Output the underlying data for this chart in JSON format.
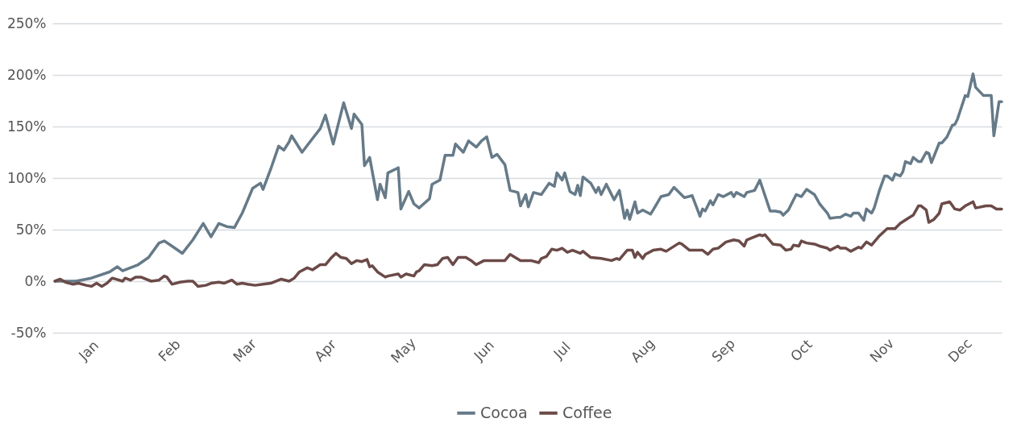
{
  "chart_data": {
    "type": "line",
    "legend": "bottom",
    "grid": "y",
    "line_style": "solid",
    "xlim": [
      "--01-01",
      "--12-31"
    ],
    "xticks": [
      {
        "value": "--01-15",
        "label": "Jan"
      },
      {
        "value": "--02-15",
        "label": "Feb"
      },
      {
        "value": "--03-15",
        "label": "Mar"
      },
      {
        "value": "--04-15",
        "label": "Apr"
      },
      {
        "value": "--05-15",
        "label": "May"
      },
      {
        "value": "--06-15",
        "label": "Jun"
      },
      {
        "value": "--07-15",
        "label": "Jul"
      },
      {
        "value": "--08-15",
        "label": "Aug"
      },
      {
        "value": "--09-15",
        "label": "Sep"
      },
      {
        "value": "--10-15",
        "label": "Oct"
      },
      {
        "value": "--11-15",
        "label": "Nov"
      },
      {
        "value": "--12-15",
        "label": "Dec"
      }
    ],
    "ylim": [
      -50,
      250
    ],
    "yticks": [
      {
        "value": -50,
        "label": "-50%"
      },
      {
        "value": 0,
        "label": "0%"
      },
      {
        "value": 50,
        "label": "50%"
      },
      {
        "value": 100,
        "label": "100%"
      },
      {
        "value": 150,
        "label": "150%"
      },
      {
        "value": 200,
        "label": "200%"
      },
      {
        "value": 250,
        "label": "250%"
      }
    ],
    "series": [
      {
        "name": "Cocoa",
        "color": "#667a88",
        "x": [
          "--01-02",
          "--01-10",
          "--01-16",
          "--01-23",
          "--01-26",
          "--01-28",
          "--02-03",
          "--02-07",
          "--02-11",
          "--02-13",
          "--02-16",
          "--02-20",
          "--02-24",
          "--02-28",
          "--03-02",
          "--03-05",
          "--03-08",
          "--03-11",
          "--03-14",
          "--03-18",
          "--03-21",
          "--03-22",
          "--03-25",
          "--03-28",
          "--03-30",
          "--04-01",
          "--04-02",
          "--04-06",
          "--04-09",
          "--04-13",
          "--04-15",
          "--04-18",
          "--04-21",
          "--04-22",
          "--04-25",
          "--04-26",
          "--04-29",
          "--04-30",
          "--05-02",
          "--05-05",
          "--05-06",
          "--05-08",
          "--05-09",
          "--05-13",
          "--05-14",
          "--05-17",
          "--05-19",
          "--05-21",
          "--05-25",
          "--05-26",
          "--05-29",
          "--05-31",
          "--06-03",
          "--06-04",
          "--06-07",
          "--06-09",
          "--06-12",
          "--06-14",
          "--06-16",
          "--06-18",
          "--06-20",
          "--06-23",
          "--06-25",
          "--06-28",
          "--06-29",
          "--07-01",
          "--07-02",
          "--07-04",
          "--07-07",
          "--07-10",
          "--07-12",
          "--07-13",
          "--07-15",
          "--07-16",
          "--07-18",
          "--07-20",
          "--07-21",
          "--07-22",
          "--07-23",
          "--07-26",
          "--07-28",
          "--07-29",
          "--07-30",
          "--08-01",
          "--08-04",
          "--08-06",
          "--08-08",
          "--08-09",
          "--08-10",
          "--08-12",
          "--08-13",
          "--08-15",
          "--08-18",
          "--08-19",
          "--08-22",
          "--08-25",
          "--08-27",
          "--08-31",
          "--09-03",
          "--09-06",
          "--09-07",
          "--09-08",
          "--09-10",
          "--09-11",
          "--09-13",
          "--09-15",
          "--09-18",
          "--09-19",
          "--09-20",
          "--09-23",
          "--09-24",
          "--09-27",
          "--09-29",
          "--10-03",
          "--10-05",
          "--10-07",
          "--10-08",
          "--10-10",
          "--10-13",
          "--10-15",
          "--10-17",
          "--10-20",
          "--10-22",
          "--10-25",
          "--10-26",
          "--10-29",
          "--10-30",
          "--11-01",
          "--11-03",
          "--11-04",
          "--11-06",
          "--11-08",
          "--11-09",
          "--11-11",
          "--11-12",
          "--11-14",
          "--11-16",
          "--11-17",
          "--11-19",
          "--11-20",
          "--11-22",
          "--11-23",
          "--11-24",
          "--11-26",
          "--11-27",
          "--11-29",
          "--11-30",
          "--12-02",
          "--12-03",
          "--12-04",
          "--12-07",
          "--12-08",
          "--12-10",
          "--12-12",
          "--12-13",
          "--12-14",
          "--12-17",
          "--12-18",
          "--12-20",
          "--12-21",
          "--12-24",
          "--12-27",
          "--12-28",
          "--12-30",
          "--12-31"
        ],
        "values": [
          0,
          0,
          3,
          9,
          14,
          10,
          16,
          23,
          37,
          39,
          34,
          27,
          40,
          56,
          43,
          56,
          53,
          52,
          66,
          90,
          95,
          89,
          109,
          131,
          127,
          135,
          141,
          125,
          135,
          148,
          161,
          133,
          163,
          173,
          148,
          162,
          152,
          112,
          120,
          79,
          94,
          81,
          105,
          110,
          70,
          87,
          75,
          71,
          80,
          94,
          98,
          122,
          122,
          133,
          125,
          136,
          130,
          136,
          140,
          120,
          123,
          113,
          88,
          86,
          73,
          84,
          72,
          86,
          84,
          95,
          92,
          105,
          98,
          105,
          87,
          84,
          93,
          83,
          101,
          95,
          86,
          91,
          84,
          94,
          79,
          88,
          61,
          69,
          60,
          77,
          66,
          69,
          65,
          69,
          82,
          84,
          91,
          81,
          83,
          63,
          70,
          68,
          78,
          74,
          84,
          82,
          86,
          82,
          86,
          82,
          86,
          88,
          98,
          68,
          68,
          67,
          64,
          69,
          84,
          82,
          89,
          84,
          75,
          66,
          61,
          62,
          62,
          65,
          63,
          66,
          66,
          59,
          70,
          66,
          71,
          88,
          102,
          102,
          98,
          104,
          102,
          106,
          116,
          114,
          120,
          116,
          116,
          125,
          124,
          115,
          134,
          134,
          140,
          151,
          152,
          157,
          180,
          179,
          201,
          188,
          180,
          180,
          141,
          174,
          174
        ]
      },
      {
        "name": "Coffee",
        "color": "#6b4a48",
        "x": [
          "--01-02",
          "--01-04",
          "--01-06",
          "--01-09",
          "--01-11",
          "--01-14",
          "--01-16",
          "--01-18",
          "--01-20",
          "--01-22",
          "--01-24",
          "--01-28",
          "--01-29",
          "--01-31",
          "--02-02",
          "--02-04",
          "--02-08",
          "--02-11",
          "--02-13",
          "--02-14",
          "--02-16",
          "--02-19",
          "--02-22",
          "--02-24",
          "--02-26",
          "--02-29",
          "--03-02",
          "--03-05",
          "--03-07",
          "--03-10",
          "--03-12",
          "--03-14",
          "--03-16",
          "--03-19",
          "--03-22",
          "--03-25",
          "--03-29",
          "--04-01",
          "--04-03",
          "--04-05",
          "--04-08",
          "--04-10",
          "--04-13",
          "--04-15",
          "--04-17",
          "--04-19",
          "--04-21",
          "--04-23",
          "--04-25",
          "--04-27",
          "--04-29",
          "--05-01",
          "--05-02",
          "--05-03",
          "--05-05",
          "--05-08",
          "--05-09",
          "--05-13",
          "--05-14",
          "--05-16",
          "--05-19",
          "--05-20",
          "--05-21",
          "--05-23",
          "--05-26",
          "--05-28",
          "--05-30",
          "--06-01",
          "--06-03",
          "--06-05",
          "--06-08",
          "--06-10",
          "--06-12",
          "--06-15",
          "--06-19",
          "--06-21",
          "--06-23",
          "--06-25",
          "--06-29",
          "--07-01",
          "--07-03",
          "--07-06",
          "--07-07",
          "--07-09",
          "--07-11",
          "--07-13",
          "--07-15",
          "--07-17",
          "--07-19",
          "--07-22",
          "--07-23",
          "--07-26",
          "--07-30",
          "--08-03",
          "--08-05",
          "--08-06",
          "--08-09",
          "--08-11",
          "--08-12",
          "--08-13",
          "--08-15",
          "--08-16",
          "--08-19",
          "--08-22",
          "--08-24",
          "--08-29",
          "--08-30",
          "--09-02",
          "--09-07",
          "--09-09",
          "--09-11",
          "--09-13",
          "--09-16",
          "--09-19",
          "--09-21",
          "--09-23",
          "--09-24",
          "--09-27",
          "--09-29",
          "--09-30",
          "--10-01",
          "--10-04",
          "--10-07",
          "--10-09",
          "--10-11",
          "--10-12",
          "--10-14",
          "--10-15",
          "--10-17",
          "--10-20",
          "--10-22",
          "--10-25",
          "--10-26",
          "--10-29",
          "--10-30",
          "--11-01",
          "--11-03",
          "--11-06",
          "--11-07",
          "--11-09",
          "--11-11",
          "--11-14",
          "--11-17",
          "--11-20",
          "--11-22",
          "--11-25",
          "--11-27",
          "--11-29",
          "--11-30",
          "--12-02",
          "--12-03",
          "--12-05",
          "--12-07",
          "--12-08",
          "--12-11",
          "--12-13",
          "--12-15",
          "--12-17",
          "--12-20",
          "--12-21",
          "--12-25",
          "--12-27",
          "--12-29",
          "--12-31"
        ],
        "values": [
          0,
          2,
          -1,
          -3,
          -2,
          -4,
          -5,
          -2,
          -5,
          -2,
          3,
          0,
          3,
          1,
          4,
          4,
          0,
          1,
          5,
          4,
          -3,
          -1,
          0,
          0,
          -5,
          -4,
          -2,
          -1,
          -2,
          1,
          -3,
          -2,
          -3,
          -4,
          -3,
          -2,
          2,
          0,
          3,
          9,
          13,
          11,
          16,
          16,
          22,
          27,
          23,
          22,
          17,
          20,
          19,
          21,
          14,
          15,
          9,
          4,
          5,
          7,
          4,
          7,
          5,
          9,
          10,
          16,
          15,
          16,
          22,
          23,
          16,
          23,
          23,
          20,
          16,
          20,
          20,
          20,
          20,
          26,
          20,
          20,
          20,
          18,
          22,
          24,
          31,
          30,
          32,
          28,
          30,
          27,
          29,
          23,
          22,
          20,
          22,
          21,
          30,
          30,
          23,
          28,
          22,
          26,
          30,
          31,
          29,
          37,
          36,
          30,
          30,
          26,
          31,
          32,
          38,
          40,
          39,
          34,
          40,
          43,
          45,
          44,
          45,
          36,
          35,
          30,
          31,
          35,
          34,
          39,
          37,
          36,
          34,
          32,
          30,
          34,
          32,
          32,
          29,
          33,
          32,
          38,
          35,
          44,
          51,
          51,
          56,
          61,
          64,
          73,
          73,
          69,
          57,
          60,
          66,
          75,
          77,
          70,
          69,
          73,
          77,
          71,
          73,
          73,
          70,
          70
        ]
      }
    ]
  }
}
